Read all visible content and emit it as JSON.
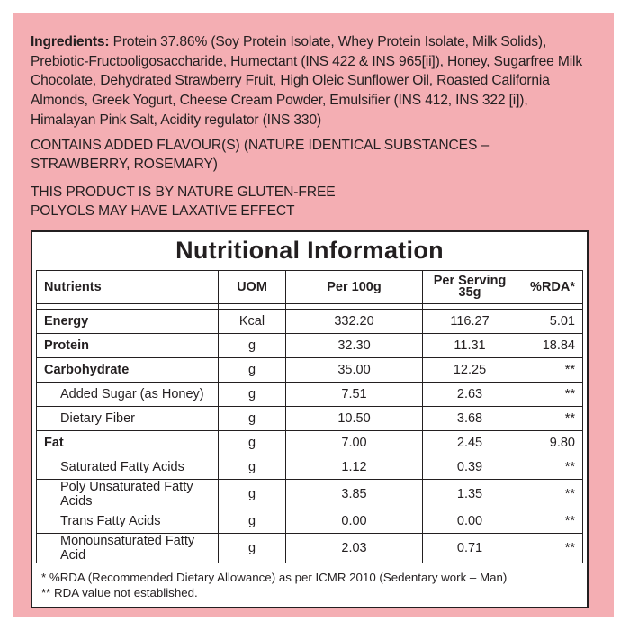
{
  "ingredients": {
    "label": "Ingredients:",
    "text": "Protein 37.86% (Soy Protein Isolate, Whey Protein Isolate, Milk Solids), Prebiotic-Fructooligosaccharide, Humectant (INS 422 & INS 965[ii]), Honey, Sugarfree Milk Chocolate, Dehydrated Strawberry Fruit, High Oleic Sunflower Oil, Roasted California Almonds, Greek Yogurt, Cheese Cream Powder, Emulsifier (INS 412, INS 322 [i]), Himalayan Pink Salt, Acidity regulator (INS 330)"
  },
  "flavour_lines": [
    "CONTAINS ADDED FLAVOUR(S) (NATURE IDENTICAL SUBSTANCES –",
    "STRAWBERRY, ROSEMARY)"
  ],
  "notice_lines": [
    "THIS PRODUCT IS BY NATURE GLUTEN-FREE",
    "POLYOLS MAY HAVE LAXATIVE EFFECT"
  ],
  "nutrition": {
    "title": "Nutritional Information",
    "headers": {
      "nutrients": "Nutrients",
      "uom": "UOM",
      "per100": "Per 100g",
      "per_serving_1": "Per Serving",
      "per_serving_2": "35g",
      "rda": "%RDA*"
    },
    "rows": [
      {
        "name": "Energy",
        "uom": "Kcal",
        "per100": "332.20",
        "serving": "116.27",
        "rda": "5.01"
      },
      {
        "name": "Protein",
        "uom": "g",
        "per100": "32.30",
        "serving": "11.31",
        "rda": "18.84"
      },
      {
        "name": "Carbohydrate",
        "uom": "g",
        "per100": "35.00",
        "serving": "12.25",
        "rda": "**"
      },
      {
        "name": "Added Sugar (as Honey)",
        "uom": "g",
        "per100": "7.51",
        "serving": "2.63",
        "rda": "**"
      },
      {
        "name": "Dietary Fiber",
        "uom": "g",
        "per100": "10.50",
        "serving": "3.68",
        "rda": "**"
      },
      {
        "name": "Fat",
        "uom": "g",
        "per100": "7.00",
        "serving": "2.45",
        "rda": "9.80"
      },
      {
        "name": "Saturated Fatty Acids",
        "uom": "g",
        "per100": "1.12",
        "serving": "0.39",
        "rda": "**"
      },
      {
        "name": "Poly Unsaturated Fatty Acids",
        "uom": "g",
        "per100": "3.85",
        "serving": "1.35",
        "rda": "**"
      },
      {
        "name": "Trans Fatty Acids",
        "uom": "g",
        "per100": "0.00",
        "serving": "0.00",
        "rda": "**"
      },
      {
        "name": "Monounsaturated Fatty Acid",
        "uom": "g",
        "per100": "2.03",
        "serving": "0.71",
        "rda": "**"
      }
    ],
    "footnotes": [
      "* %RDA (Recommended Dietary Allowance) as per ICMR 2010 (Sedentary work – Man)",
      "** RDA value not established."
    ]
  },
  "colors": {
    "panel_background": "#f4aeb3",
    "table_background": "#ffffff",
    "ink": "#231f20"
  }
}
